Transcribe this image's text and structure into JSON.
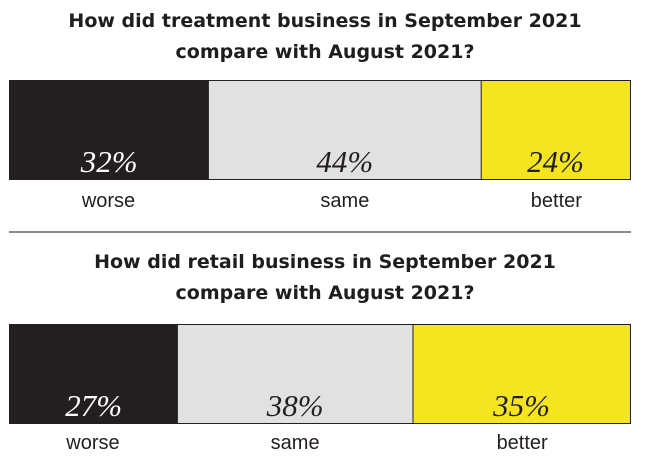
{
  "colors": {
    "worse": "#231f20",
    "same": "#e1e1e1",
    "better": "#f4e520",
    "label_on_dark": "#ffffff",
    "label_on_light": "#231f20"
  },
  "chart_data": [
    {
      "type": "bar",
      "orientation": "stacked-horizontal-100%",
      "title": "How did treatment business in September 2021 compare with August 2021?",
      "title_lines": [
        "How did treatment business in September 2021",
        "compare with August 2021?"
      ],
      "categories": [
        "worse",
        "same",
        "better"
      ],
      "values": [
        32,
        44,
        24
      ],
      "labels": [
        "32%",
        "44%",
        "24%"
      ],
      "unit": "%",
      "xlim": [
        0,
        100
      ],
      "grid": false,
      "legend": "none"
    },
    {
      "type": "bar",
      "orientation": "stacked-horizontal-100%",
      "title": "How did retail business in September 2021 compare with August 2021?",
      "title_lines": [
        "How did retail business in September 2021",
        "compare with August 2021?"
      ],
      "categories": [
        "worse",
        "same",
        "better"
      ],
      "values": [
        27,
        38,
        35
      ],
      "labels": [
        "27%",
        "38%",
        "35%"
      ],
      "unit": "%",
      "xlim": [
        0,
        100
      ],
      "grid": false,
      "legend": "none"
    }
  ]
}
